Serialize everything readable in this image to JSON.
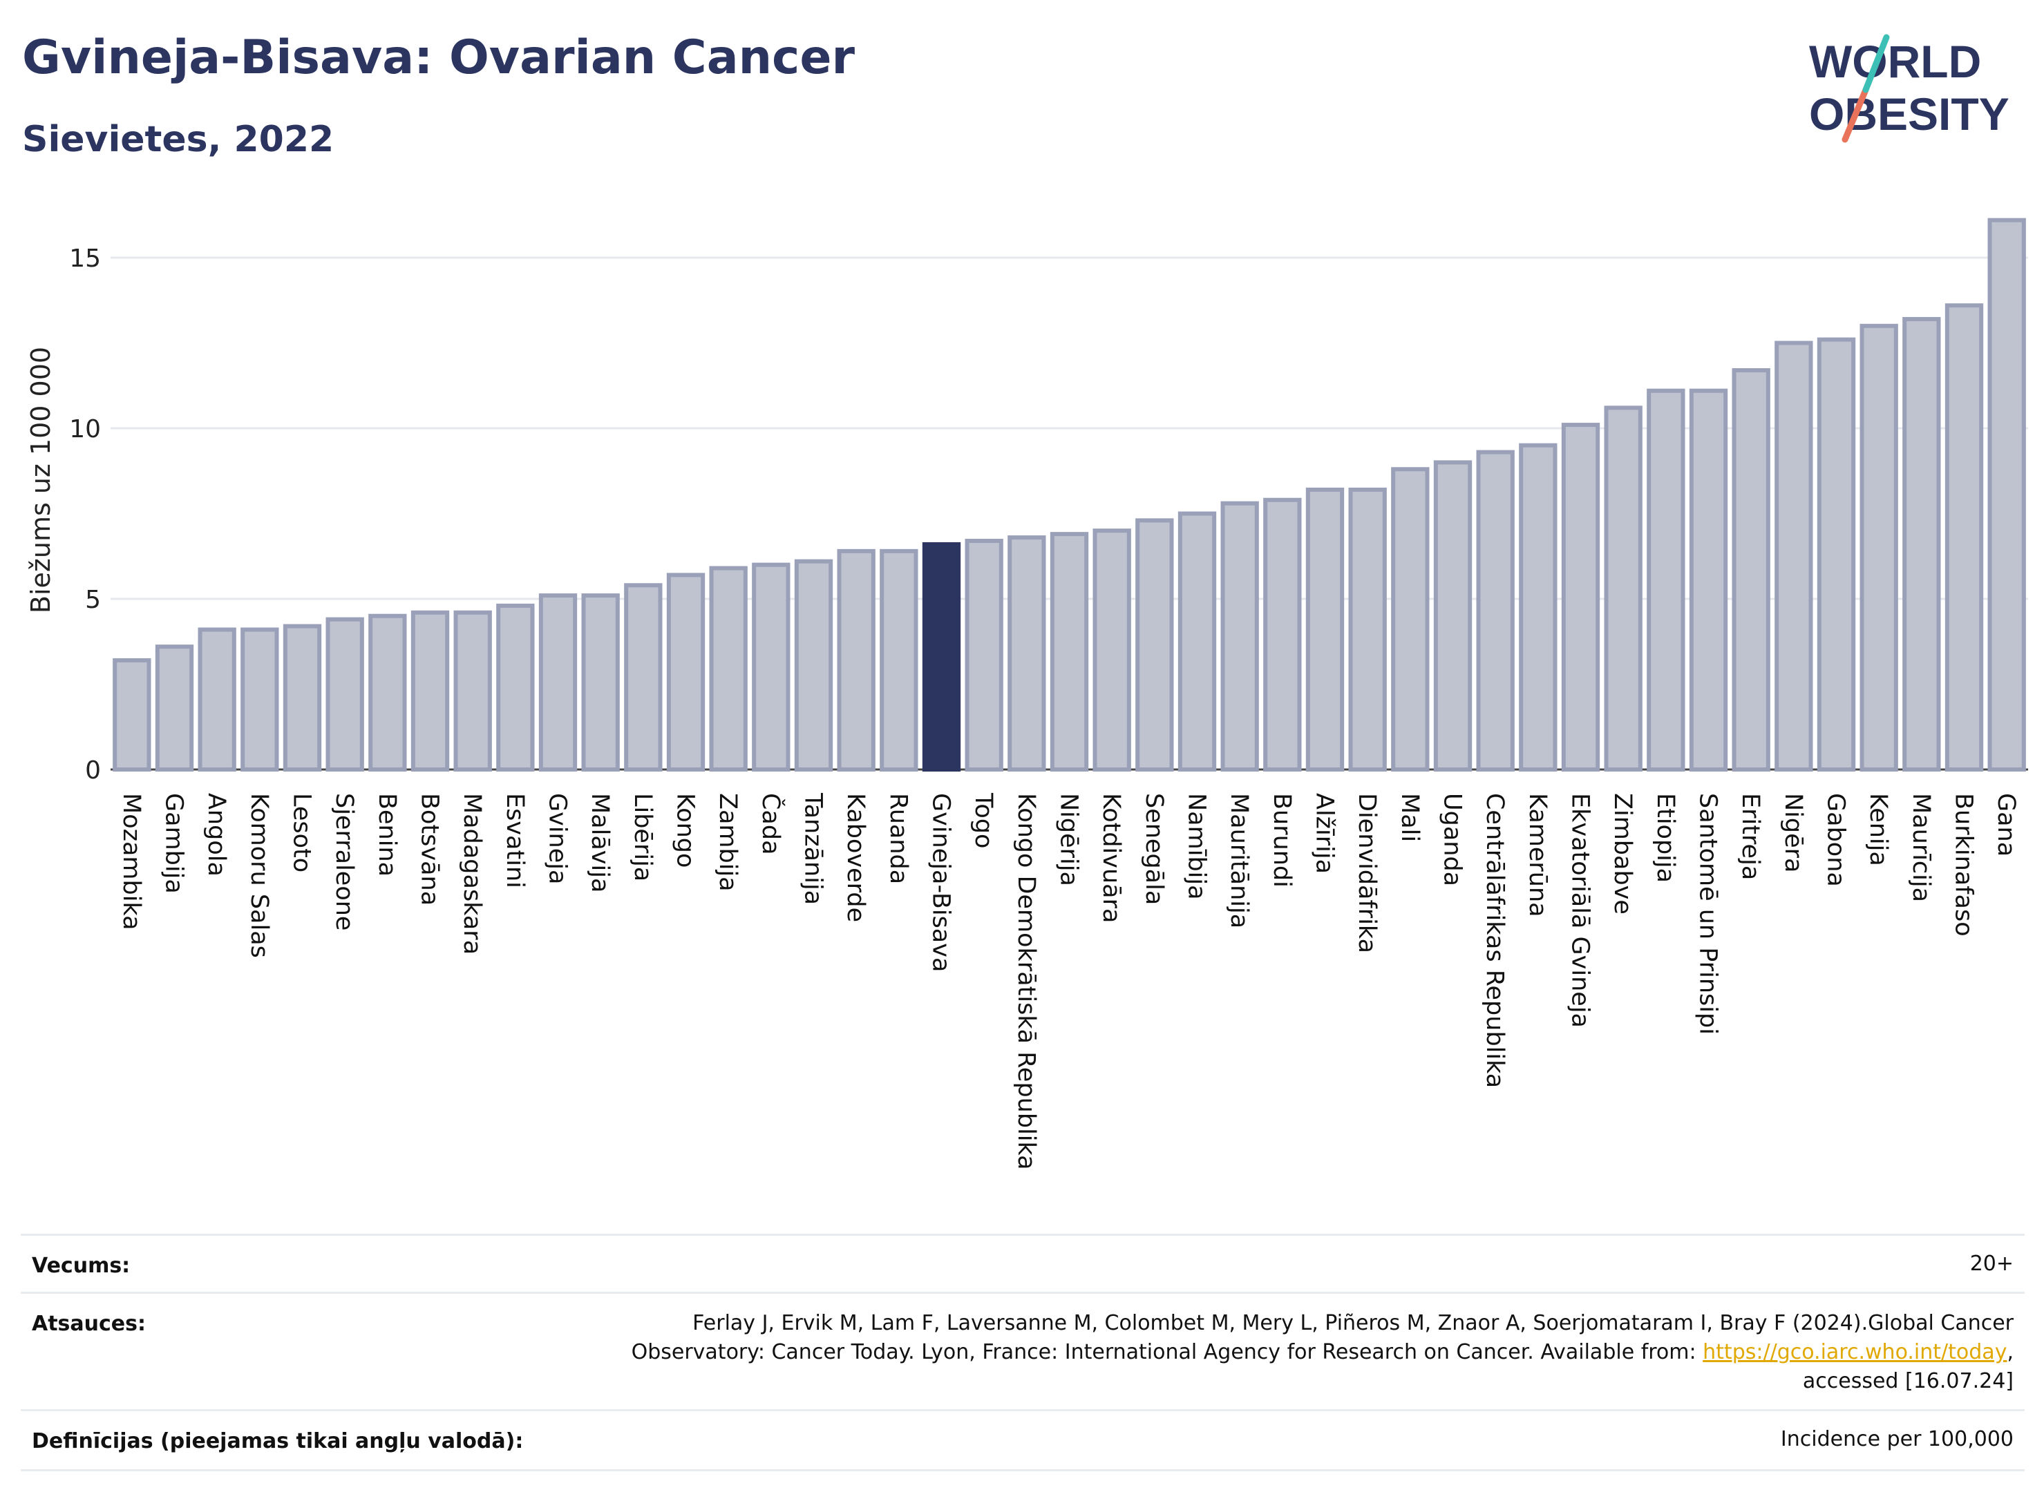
{
  "header": {
    "title": "Gvineja-Bisava: Ovarian Cancer",
    "subtitle": "Sievietes, 2022",
    "logo_line1": "WORLD",
    "logo_line2": "OBESITY"
  },
  "chart_data": {
    "type": "bar",
    "ylabel": "Biežums uz 100 000",
    "ylim": [
      0,
      16.5
    ],
    "yticks": [
      0,
      5,
      10,
      15
    ],
    "grid": true,
    "highlight": "Gvineja-Bisava",
    "colors": {
      "bar": "#bfc3d0",
      "bar_edge": "#9aa0b8",
      "highlight": "#2b3560",
      "grid": "#e6e8ee"
    },
    "categories": [
      "Mozambika",
      "Gambija",
      "Angola",
      "Komoru Salas",
      "Lesoto",
      "Sjerraleone",
      "Benina",
      "Botsvāna",
      "Madagaskara",
      "Esvatini",
      "Gvineja",
      "Malāvija",
      "Libērija",
      "Kongo",
      "Zambija",
      "Čada",
      "Tanzānija",
      "Kaboverde",
      "Ruanda",
      "Gvineja-Bisava",
      "Togo",
      "Kongo Demokrātiskā Republika",
      "Nigērija",
      "Kotdivuāra",
      "Senegāla",
      "Namībija",
      "Mauritānija",
      "Burundi",
      "Alžīrija",
      "Dienvidāfrika",
      "Mali",
      "Uganda",
      "Centrālāfrikas Republika",
      "Kamerūna",
      "Ekvatoriālā Gvineja",
      "Zimbabve",
      "Etiopija",
      "Santomē un Prinsipi",
      "Eritreja",
      "Nigēra",
      "Gabona",
      "Kenija",
      "Maurīcija",
      "Burkinafaso",
      "Gana"
    ],
    "values": [
      3.2,
      3.6,
      4.1,
      4.1,
      4.2,
      4.4,
      4.5,
      4.6,
      4.6,
      4.8,
      5.1,
      5.1,
      5.4,
      5.7,
      5.9,
      6.0,
      6.1,
      6.4,
      6.4,
      6.6,
      6.7,
      6.8,
      6.9,
      7.0,
      7.3,
      7.5,
      7.8,
      7.9,
      8.2,
      8.2,
      8.8,
      9.0,
      9.3,
      9.5,
      10.1,
      10.6,
      11.1,
      11.1,
      11.7,
      12.5,
      12.6,
      13.0,
      13.2,
      13.6,
      16.1
    ]
  },
  "footer": {
    "age_label": "Vecums:",
    "age_value": "20+",
    "ref_label": "Atsauces:",
    "ref_line1": "Ferlay J, Ervik M, Lam F, Laversanne M, Colombet M, Mery L, Piñeros M, Znaor A, Soerjomataram I, Bray F (2024).Global Cancer",
    "ref_line2_pre": "Observatory: Cancer Today. Lyon, France: International Agency for Research on Cancer. Available from: ",
    "ref_link": "https://gco.iarc.who.int/today",
    "ref_line2_post": ",",
    "ref_line3": "accessed [16.07.24]",
    "def_label": "Definīcijas (pieejamas tikai angļu valodā):",
    "def_value": "Incidence per 100,000"
  }
}
